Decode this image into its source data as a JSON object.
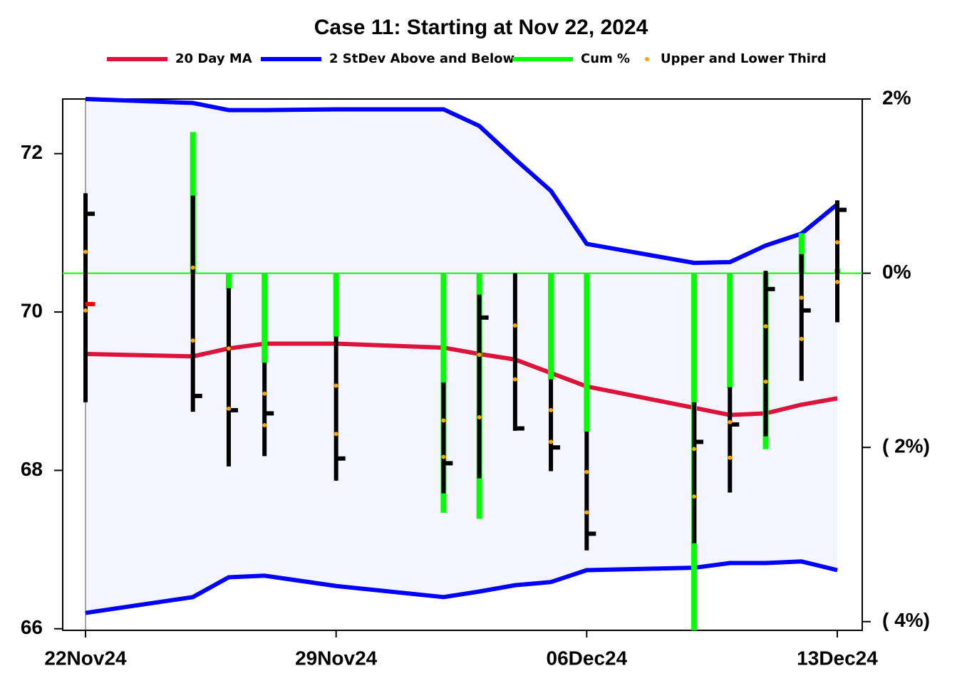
{
  "chart_data": {
    "type": "ohlc-band",
    "title": "Case 11:  Starting at Nov 22, 2024",
    "x": [
      "2024-11-22",
      "2024-11-25",
      "2024-11-26",
      "2024-11-27",
      "2024-11-29",
      "2024-12-02",
      "2024-12-03",
      "2024-12-04",
      "2024-12-05",
      "2024-12-06",
      "2024-12-09",
      "2024-12-10",
      "2024-12-11",
      "2024-12-12",
      "2024-12-13"
    ],
    "xlim": [
      "2024-11-22",
      "2024-12-13"
    ],
    "xticks": [
      {
        "value": "2024-11-22",
        "label": "22Nov24"
      },
      {
        "value": "2024-11-29",
        "label": "29Nov24"
      },
      {
        "value": "2024-12-06",
        "label": "06Dec24"
      },
      {
        "value": "2024-12-13",
        "label": "13Dec24"
      }
    ],
    "ylim": [
      65.98,
      72.69
    ],
    "yticks": [
      66,
      68,
      70,
      72
    ],
    "y2lim": [
      -4.1,
      2.0
    ],
    "y2ticks": [
      {
        "value": 2,
        "label": "2%"
      },
      {
        "value": 0,
        "label": "0%"
      },
      {
        "value": -2,
        "label": "(   2%)"
      },
      {
        "value": -4,
        "label": "(   4%)"
      }
    ],
    "ohlc": {
      "color": "#000000",
      "open_color": "#ff0000",
      "high": [
        71.5,
        71.47,
        70.3,
        69.36,
        69.69,
        69.11,
        70.22,
        70.49,
        69.15,
        68.49,
        68.86,
        69.05,
        70.52,
        70.73,
        71.41
      ],
      "low": [
        68.86,
        68.74,
        68.05,
        68.18,
        67.87,
        67.71,
        67.9,
        68.5,
        67.99,
        66.99,
        67.08,
        67.72,
        68.43,
        69.13,
        69.87
      ],
      "close": [
        71.24,
        68.94,
        68.76,
        68.72,
        68.15,
        68.09,
        69.93,
        68.53,
        68.29,
        67.2,
        68.36,
        68.58,
        70.29,
        70.02,
        71.29
      ],
      "open": [
        70.1,
        null,
        null,
        null,
        null,
        null,
        null,
        null,
        null,
        null,
        null,
        null,
        null,
        null,
        null
      ]
    },
    "series": [
      {
        "name": "20 Day MA",
        "color": "#dc143c",
        "values": [
          69.47,
          69.44,
          69.54,
          69.6,
          69.6,
          69.55,
          69.47,
          69.4,
          69.23,
          69.06,
          68.79,
          68.7,
          68.72,
          68.83,
          68.91
        ]
      },
      {
        "name": "2 StDev Above and Below",
        "color": "#0000ff",
        "fill": "#f5f5ff",
        "upper": [
          72.69,
          72.64,
          72.55,
          72.55,
          72.56,
          72.56,
          72.35,
          71.93,
          71.53,
          70.86,
          70.62,
          70.63,
          70.84,
          70.99,
          71.36
        ],
        "lower": [
          66.2,
          66.4,
          66.65,
          66.67,
          66.54,
          66.4,
          66.47,
          66.55,
          66.59,
          66.74,
          66.77,
          66.83,
          66.83,
          66.85,
          66.74
        ]
      },
      {
        "name": "Cum %",
        "color": "#00ff00",
        "axis": "y2",
        "values": [
          0,
          1.62,
          -0.18,
          -1.03,
          -0.73,
          -2.75,
          -2.82,
          0,
          -1.22,
          -1.82,
          -4.1,
          -1.32,
          -2.02,
          0.46,
          0.05
        ]
      },
      {
        "name": "Upper and Lower Third",
        "color": "#ffa500",
        "upper": [
          70.76,
          70.56,
          69.54,
          68.97,
          69.07,
          68.63,
          69.46,
          69.83,
          68.76,
          67.98,
          68.27,
          68.61,
          69.82,
          70.18,
          70.88
        ],
        "lower": [
          70.02,
          69.64,
          68.78,
          68.57,
          68.46,
          68.17,
          68.67,
          69.15,
          68.36,
          67.47,
          67.67,
          68.16,
          69.12,
          69.66,
          70.38
        ]
      }
    ]
  }
}
